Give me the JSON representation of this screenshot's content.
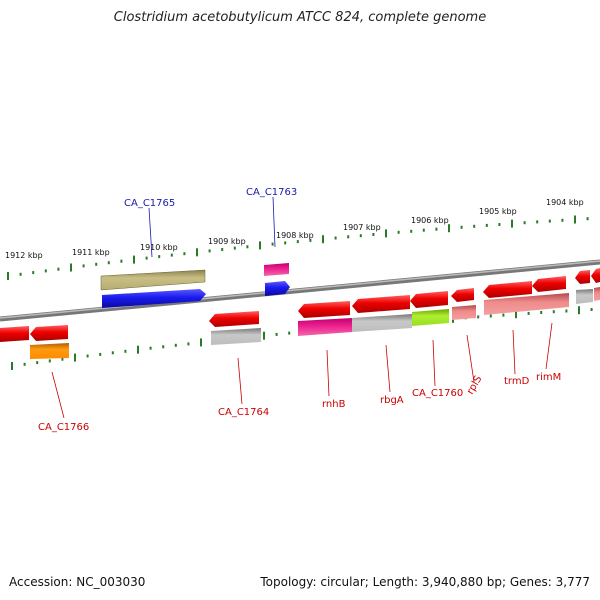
{
  "title": "Clostridium acetobutylicum ATCC 824, complete genome",
  "footer": {
    "accession": "Accession: NC_003030",
    "info": "Topology: circular; Length: 3,940,880 bp; Genes: 3,777"
  },
  "scale": {
    "upper_labels": [
      "1912 kbp",
      "1911 kbp",
      "1910 kbp",
      "1909 kbp",
      "1908 kbp",
      "1907 kbp",
      "1906 kbp",
      "1905 kbp",
      "1904 kbp"
    ]
  },
  "genes": {
    "blue": [
      "CA_C1765",
      "CA_C1763"
    ],
    "red": [
      "CA_C1766",
      "CA_C1764",
      "rnhB",
      "rbgA",
      "CA_C1760",
      "rplS",
      "trmD",
      "rimM"
    ]
  },
  "colors": {
    "forward_gene": "#1a1aee",
    "reverse_gene": "#ee0000",
    "ticks": "#2a7a2a",
    "backbone": "#888888",
    "forward_label": "#1a1aaa",
    "reverse_label": "#cc0000"
  }
}
